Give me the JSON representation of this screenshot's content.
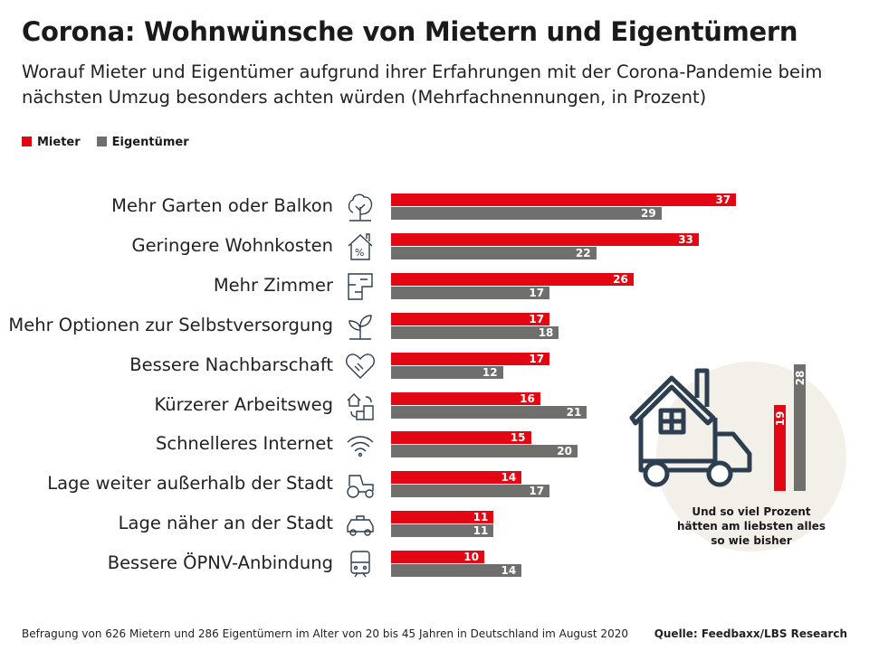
{
  "chart_data": {
    "type": "bar",
    "orientation": "horizontal",
    "title": "Corona: Wohnwünsche von Mietern und Eigentümern",
    "subtitle": "Worauf Mieter und Eigentümer aufgrund ihrer Erfahrungen mit der Corona-Pandemie beim nächsten Umzug besonders achten würden (Mehrfachnennungen, in Prozent)",
    "legend_position": "top-left",
    "grid": false,
    "xlim": [
      0,
      40
    ],
    "categories": [
      "Mehr Garten oder Balkon",
      "Geringere Wohnkosten",
      "Mehr Zimmer",
      "Mehr Optionen zur Selbstversorgung",
      "Bessere Nachbarschaft",
      "Kürzerer Arbeitsweg",
      "Schnelleres Internet",
      "Lage weiter außerhalb der Stadt",
      "Lage näher an der Stadt",
      "Bessere ÖPNV-Anbindung"
    ],
    "icons": [
      "tree-icon",
      "house-percent-icon",
      "floorplan-icon",
      "plant-icon",
      "heart-handshake-icon",
      "commute-icon",
      "wifi-icon",
      "tractor-icon",
      "taxi-icon",
      "train-icon"
    ],
    "series": [
      {
        "name": "Mieter",
        "color": "#e30613",
        "values": [
          37,
          33,
          26,
          17,
          17,
          16,
          15,
          14,
          11,
          10
        ]
      },
      {
        "name": "Eigentümer",
        "color": "#6f6f6e",
        "values": [
          29,
          22,
          17,
          18,
          12,
          21,
          20,
          17,
          11,
          14
        ]
      }
    ],
    "inset": {
      "text": "Und so viel Prozent hätten am liebsten alles so wie bisher",
      "values": [
        19,
        28
      ],
      "icon": "moving-truck-house-icon",
      "background": "#f3f0ea"
    }
  },
  "footer": {
    "note": "Befragung von 626 Mietern und 286 Eigentümern im Alter von 20 bis 45 Jahren in Deutschland im August 2020",
    "source": "Quelle: Feedbaxx/LBS Research"
  }
}
